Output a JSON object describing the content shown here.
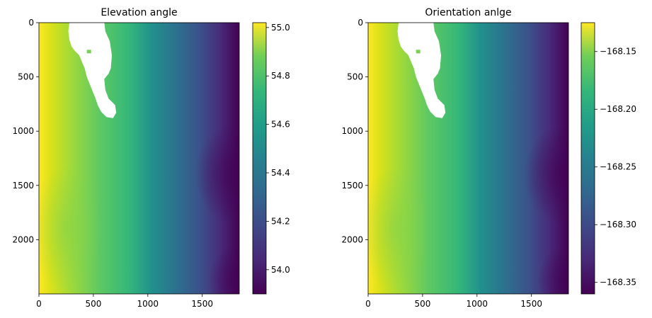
{
  "chart_data": [
    {
      "type": "heatmap",
      "title": "Elevation angle",
      "xlabel": "",
      "ylabel": "",
      "colormap": "viridis",
      "xlim": [
        0,
        1840
      ],
      "ylim": [
        2500,
        0
      ],
      "x_ticks": [
        0,
        500,
        1000,
        1500
      ],
      "y_ticks": [
        0,
        500,
        1000,
        1500,
        2000
      ],
      "colorbar": {
        "range": [
          53.9,
          55.02
        ],
        "ticks": [
          54.0,
          54.2,
          54.4,
          54.6,
          54.8,
          55.0
        ],
        "tick_labels": [
          "54.0",
          "54.2",
          "54.4",
          "54.6",
          "54.8",
          "55.0"
        ]
      },
      "field_description": "values highest at the left (west) edge, decreasing toward the right; lowest around x≈1800, y≈1400 and y≈2400",
      "nodata_mask": "white region near x 280-700, y 0-880"
    },
    {
      "type": "heatmap",
      "title": "Orientation anlge",
      "xlabel": "",
      "ylabel": "",
      "colormap": "viridis",
      "xlim": [
        0,
        1840
      ],
      "ylim": [
        2500,
        0
      ],
      "x_ticks": [
        0,
        500,
        1000,
        1500
      ],
      "y_ticks": [
        0,
        500,
        1000,
        1500,
        2000
      ],
      "colorbar": {
        "range": [
          -168.36,
          -168.125
        ],
        "ticks": [
          -168.15,
          -168.2,
          -168.25,
          -168.3,
          -168.35
        ],
        "tick_labels": [
          "−168.15",
          "−168.20",
          "−168.25",
          "−168.30",
          "−168.35"
        ]
      },
      "field_description": "values highest at the left edge, decreasing toward the right",
      "nodata_mask": "white region near x 280-720, y 0-880"
    }
  ]
}
